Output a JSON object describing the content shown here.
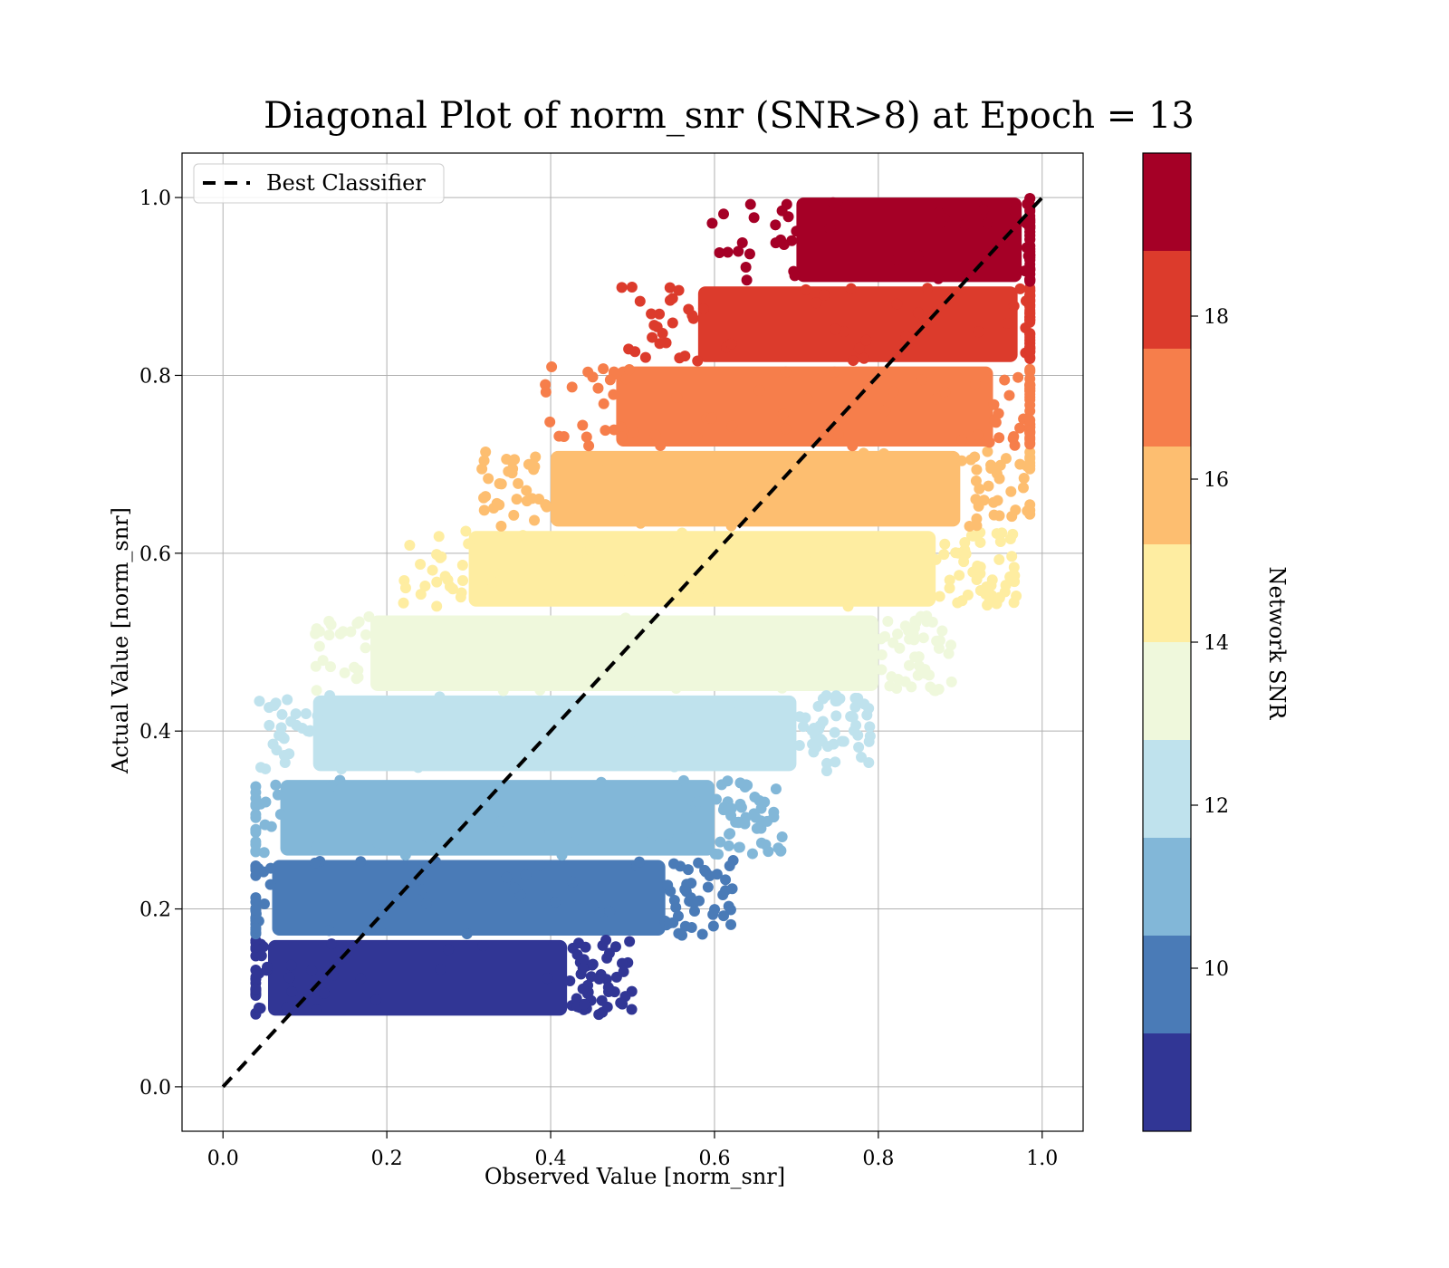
{
  "chart_data": {
    "type": "scatter",
    "title": "Diagonal Plot of norm_snr (SNR>8) at Epoch = 13",
    "xlabel": "Observed Value [norm_snr]",
    "ylabel": "Actual Value [norm_snr]",
    "xlim": [
      -0.05,
      1.05
    ],
    "ylim": [
      -0.05,
      1.05
    ],
    "xticks": [
      "0.0",
      "0.2",
      "0.4",
      "0.6",
      "0.8",
      "1.0"
    ],
    "yticks": [
      "0.0",
      "0.2",
      "0.4",
      "0.6",
      "0.8",
      "1.0"
    ],
    "grid": true,
    "legend": {
      "placement": "upper-left",
      "entries": [
        "Best Classifier"
      ]
    },
    "reference_line": {
      "name": "Best Classifier",
      "style": "dashed",
      "color": "#000000",
      "x": [
        0.0,
        1.0
      ],
      "y": [
        0.0,
        1.0
      ]
    },
    "colorbar": {
      "label": "Network SNR",
      "min": 8,
      "max": 20,
      "ticks": [
        10,
        12,
        14,
        16,
        18
      ],
      "cmap": "RdYlBu_r",
      "levels": [
        {
          "min": 8.0,
          "max": 9.2,
          "color": "#313695"
        },
        {
          "min": 9.2,
          "max": 10.4,
          "color": "#4a7bb7"
        },
        {
          "min": 10.4,
          "max": 11.6,
          "color": "#82b7d8"
        },
        {
          "min": 11.6,
          "max": 12.8,
          "color": "#bfe2ed"
        },
        {
          "min": 12.8,
          "max": 14.0,
          "color": "#eff8dc"
        },
        {
          "min": 14.0,
          "max": 15.2,
          "color": "#feeda1"
        },
        {
          "min": 15.2,
          "max": 16.4,
          "color": "#fdbe70"
        },
        {
          "min": 16.4,
          "max": 17.6,
          "color": "#f67e4b"
        },
        {
          "min": 17.6,
          "max": 18.8,
          "color": "#dc3b2c"
        },
        {
          "min": 18.8,
          "max": 20.0,
          "color": "#a50026"
        }
      ]
    },
    "series": [
      {
        "band_snr": [
          8.0,
          9.2
        ],
        "actual_range": [
          0.08,
          0.165
        ],
        "observed_core_range": [
          0.055,
          0.42
        ],
        "color": "#313695"
      },
      {
        "band_snr": [
          9.2,
          10.4
        ],
        "actual_range": [
          0.17,
          0.255
        ],
        "observed_core_range": [
          0.06,
          0.54
        ],
        "color": "#4a7bb7"
      },
      {
        "band_snr": [
          10.4,
          11.6
        ],
        "actual_range": [
          0.26,
          0.345
        ],
        "observed_core_range": [
          0.07,
          0.6
        ],
        "color": "#82b7d8"
      },
      {
        "band_snr": [
          11.6,
          12.8
        ],
        "actual_range": [
          0.355,
          0.44
        ],
        "observed_core_range": [
          0.11,
          0.7
        ],
        "color": "#bfe2ed"
      },
      {
        "band_snr": [
          12.8,
          14.0
        ],
        "actual_range": [
          0.445,
          0.53
        ],
        "observed_core_range": [
          0.18,
          0.8
        ],
        "color": "#eff8dc"
      },
      {
        "band_snr": [
          14.0,
          15.2
        ],
        "actual_range": [
          0.54,
          0.625
        ],
        "observed_core_range": [
          0.3,
          0.87
        ],
        "color": "#feeda1"
      },
      {
        "band_snr": [
          15.2,
          16.4
        ],
        "actual_range": [
          0.63,
          0.715
        ],
        "observed_core_range": [
          0.4,
          0.9
        ],
        "color": "#fdbe70"
      },
      {
        "band_snr": [
          16.4,
          17.6
        ],
        "actual_range": [
          0.72,
          0.81
        ],
        "observed_core_range": [
          0.48,
          0.94
        ],
        "color": "#f67e4b"
      },
      {
        "band_snr": [
          17.6,
          18.8
        ],
        "actual_range": [
          0.815,
          0.9
        ],
        "observed_core_range": [
          0.58,
          0.97
        ],
        "color": "#dc3b2c"
      },
      {
        "band_snr": [
          18.8,
          20.0
        ],
        "actual_range": [
          0.905,
          1.0
        ],
        "observed_core_range": [
          0.7,
          0.975
        ],
        "color": "#a50026"
      }
    ]
  }
}
